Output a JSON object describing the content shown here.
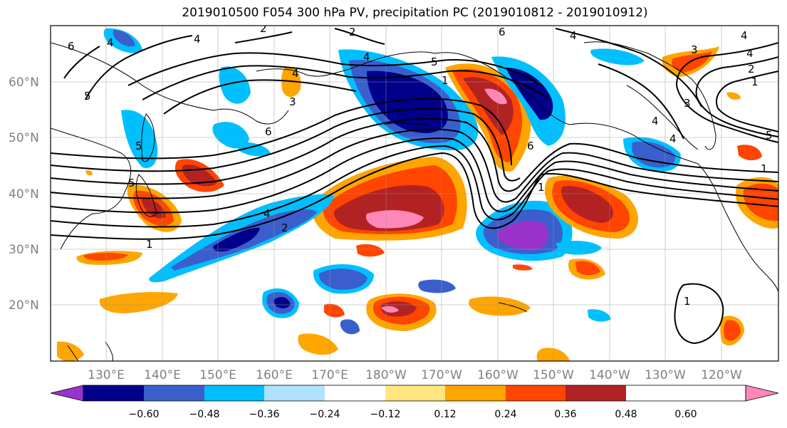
{
  "title": "2019010500 F054 300 hPa PV, precipitation PC (2019010812 - 2019010912)",
  "lat_labels": [
    "60°N",
    "50°N",
    "40°N",
    "30°N",
    "20°N"
  ],
  "lon_labels": [
    "130°E",
    "140°E",
    "150°E",
    "160°E",
    "170°E",
    "180°W",
    "170°W",
    "160°W",
    "150°W",
    "140°W",
    "130°W",
    "120°W"
  ],
  "colorbar": {
    "ticks": [
      "−0.60",
      "−0.48",
      "−0.36",
      "−0.24",
      "−0.12",
      "0.12",
      "0.24",
      "0.36",
      "0.48",
      "0.60"
    ],
    "colors": [
      "#9933cc",
      "#00008b",
      "#3a5fcd",
      "#00bfff",
      "#b0e2ff",
      "#ffffff",
      "#ffe680",
      "#ffa500",
      "#ff4500",
      "#b22222",
      "#ff88b8"
    ]
  },
  "contour_labels": [
    "6",
    "5",
    "5",
    "4",
    "4",
    "2",
    "2",
    "6",
    "4",
    "4",
    "2",
    "4",
    "4",
    "5",
    "3",
    "1",
    "1",
    "6",
    "5",
    "4",
    "6",
    "1",
    "3",
    "1",
    "2",
    "3",
    "4",
    "4",
    "4",
    "5",
    "1",
    "1"
  ]
}
